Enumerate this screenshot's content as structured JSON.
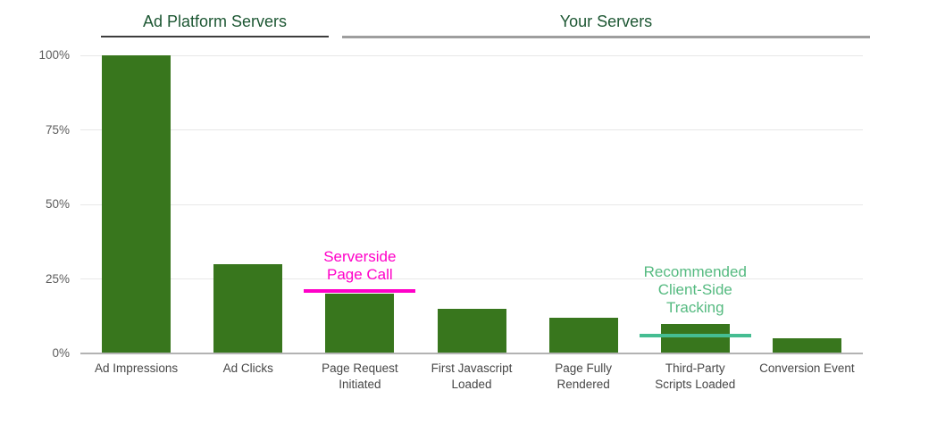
{
  "sections": [
    {
      "label": "Ad Platform Servers",
      "underline_color": "#3d3d3d"
    },
    {
      "label": "Your Servers",
      "underline_color": "#9e9e9e"
    }
  ],
  "section_title_color": "#1d5733",
  "chart_data": {
    "type": "bar",
    "categories": [
      "Ad Impressions",
      "Ad Clicks",
      "Page Request\nInitiated",
      "First Javascript\nLoaded",
      "Page Fully\nRendered",
      "Third-Party\nScripts Loaded",
      "Conversion Event"
    ],
    "values": [
      100,
      30,
      20,
      15,
      12,
      10,
      5
    ],
    "bar_color": "#38761d",
    "ylim": [
      0,
      100
    ],
    "yticks": [
      {
        "label": "0%",
        "value": 0
      },
      {
        "label": "25%",
        "value": 25
      },
      {
        "label": "50%",
        "value": 50
      },
      {
        "label": "75%",
        "value": 75
      },
      {
        "label": "100%",
        "value": 100
      }
    ],
    "grid": true,
    "gridline_color": "#e8e8e8",
    "axis_line_color": "#b3b3b3",
    "tick_label_color": "#5c5c5c",
    "category_label_color": "#474747",
    "annotations": [
      {
        "label": "Serverside Page Call",
        "column": 2,
        "line_value": 21,
        "line_color": "#ff00c8",
        "text_color": "#ff00c8",
        "text_gap": 8,
        "text_width": 115
      },
      {
        "label": "Recommended Client-Side Tracking",
        "column": 5,
        "line_value": 6,
        "line_color": "#45bd92",
        "text_color": "#55ba80",
        "text_gap": 21,
        "text_width": 140
      }
    ]
  }
}
